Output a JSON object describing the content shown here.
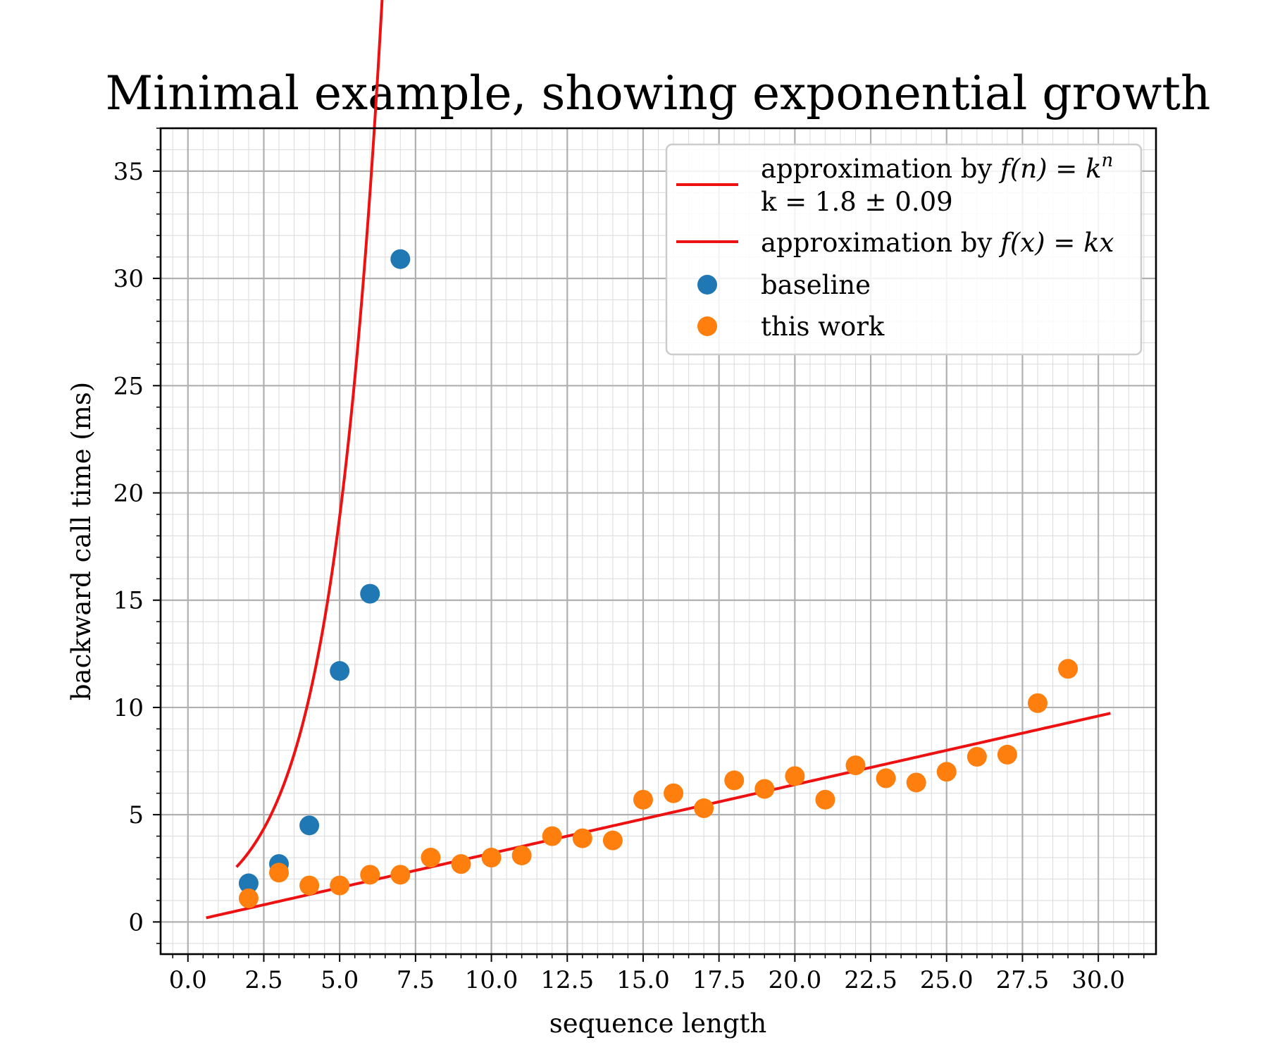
{
  "chart_data": {
    "type": "scatter",
    "title": "Minimal example, showing exponential growth",
    "xlabel": "sequence length",
    "ylabel": "backward call time (ms)",
    "xlim": [
      -0.9,
      31.9
    ],
    "ylim": [
      -1.5,
      37.0
    ],
    "xticks": [
      0.0,
      2.5,
      5.0,
      7.5,
      10.0,
      12.5,
      15.0,
      17.5,
      20.0,
      22.5,
      25.0,
      27.5,
      30.0
    ],
    "xtick_labels": [
      "0.0",
      "2.5",
      "5.0",
      "7.5",
      "10.0",
      "12.5",
      "15.0",
      "17.5",
      "20.0",
      "22.5",
      "25.0",
      "27.5",
      "30.0"
    ],
    "yticks": [
      0,
      5,
      10,
      15,
      20,
      25,
      30,
      35
    ],
    "ytick_labels": [
      "0",
      "5",
      "10",
      "15",
      "20",
      "25",
      "30",
      "35"
    ],
    "grid": true,
    "minor_grid": true,
    "legend_position": "top-right",
    "series": [
      {
        "name": "baseline",
        "kind": "scatter",
        "color": "#1f77b4",
        "x": [
          2,
          3,
          4,
          5,
          6,
          7
        ],
        "y": [
          1.8,
          2.7,
          4.5,
          11.7,
          15.3,
          30.9
        ]
      },
      {
        "name": "this work",
        "kind": "scatter",
        "color": "#ff7f0e",
        "x": [
          2,
          3,
          4,
          5,
          6,
          7,
          8,
          9,
          10,
          11,
          12,
          13,
          14,
          15,
          16,
          17,
          18,
          19,
          20,
          21,
          22,
          23,
          24,
          25,
          26,
          27,
          28,
          29
        ],
        "y": [
          1.1,
          2.3,
          1.7,
          1.7,
          2.2,
          2.2,
          3.0,
          2.7,
          3.0,
          3.1,
          4.0,
          3.9,
          3.8,
          5.7,
          6.0,
          5.3,
          6.6,
          6.2,
          6.8,
          5.7,
          7.3,
          6.7,
          6.5,
          7.0,
          7.7,
          7.8,
          10.2,
          11.8
        ]
      }
    ],
    "fits": [
      {
        "name": "approximation by f(n) = k^n",
        "label_prefix": "approximation by ",
        "label_math": "f(n) = k",
        "label_sup": "n",
        "label_line2": "k = 1.8 ± 0.09",
        "kind": "line",
        "color": "#ee1111",
        "model": "exponential",
        "k": 1.8,
        "x_range": [
          1.6,
          7.25
        ]
      },
      {
        "name": "approximation by f(x) = kx",
        "label_prefix": "approximation by ",
        "label_math": "f(x) = kx",
        "kind": "line",
        "color": "#ee1111",
        "model": "linear",
        "k": 0.32,
        "x_range": [
          0.6,
          30.4
        ]
      }
    ]
  }
}
